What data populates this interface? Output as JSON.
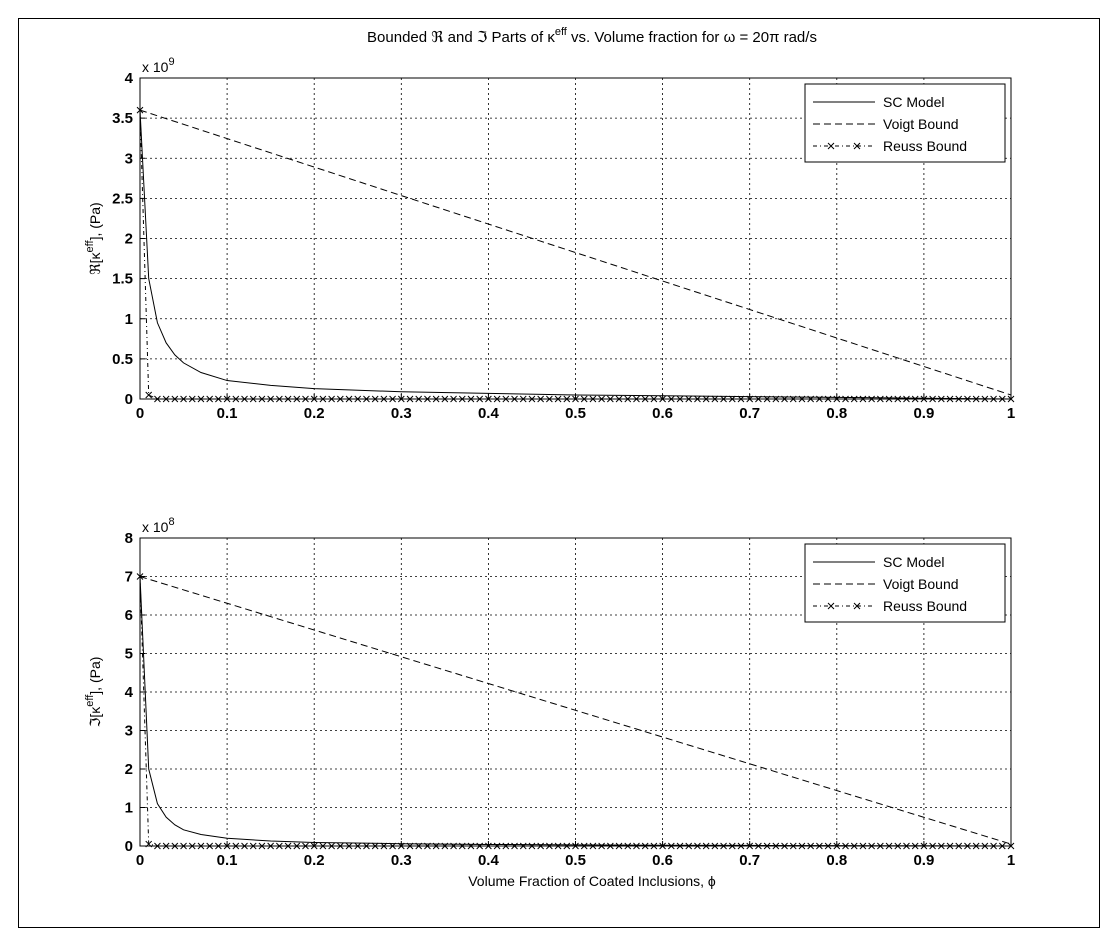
{
  "figure": {
    "title": "Bounded ℜ and ℑ Parts of κ^eff vs. Volume fraction for ω = 20π rad/s",
    "xlabel": "Volume Fraction of Coated Inclusions, ϕ"
  },
  "chart_data": [
    {
      "type": "line",
      "title": "Bounded ℜ and ℑ Parts of κ^eff vs. Volume fraction for ω = 20π rad/s",
      "ylabel": "ℜ[κ^eff], (Pa)",
      "xlabel": "",
      "exponent_label": "x 10^9",
      "xlim": [
        0,
        1
      ],
      "ylim": [
        0,
        4
      ],
      "xticks": [
        "0",
        "0.1",
        "0.2",
        "0.3",
        "0.4",
        "0.5",
        "0.6",
        "0.7",
        "0.8",
        "0.9",
        "1"
      ],
      "yticks": [
        "0",
        "0.5",
        "1",
        "1.5",
        "2",
        "2.5",
        "3",
        "3.5",
        "4"
      ],
      "grid": true,
      "legend_position": "top-right",
      "series": [
        {
          "name": "SC Model",
          "style": "solid",
          "x": [
            0,
            0.01,
            0.02,
            0.03,
            0.04,
            0.05,
            0.07,
            0.1,
            0.15,
            0.2,
            0.3,
            0.4,
            0.5,
            0.6,
            0.7,
            0.8,
            0.9,
            1.0
          ],
          "y": [
            3.6,
            1.5,
            0.95,
            0.7,
            0.55,
            0.45,
            0.33,
            0.23,
            0.17,
            0.13,
            0.09,
            0.07,
            0.05,
            0.04,
            0.03,
            0.02,
            0.01,
            0.0
          ]
        },
        {
          "name": "Voigt Bound",
          "style": "dashed",
          "x": [
            0,
            1
          ],
          "y": [
            3.6,
            0.05
          ]
        },
        {
          "name": "Reuss Bound",
          "style": "dash-dot-x",
          "x": [
            0,
            0.01,
            0.02,
            1.0
          ],
          "y": [
            3.6,
            0.05,
            0.0,
            0.0
          ]
        }
      ]
    },
    {
      "type": "line",
      "title": "",
      "ylabel": "ℑ[κ^eff], (Pa)",
      "xlabel": "Volume Fraction of Coated Inclusions, ϕ",
      "exponent_label": "x 10^8",
      "xlim": [
        0,
        1
      ],
      "ylim": [
        0,
        8
      ],
      "xticks": [
        "0",
        "0.1",
        "0.2",
        "0.3",
        "0.4",
        "0.5",
        "0.6",
        "0.7",
        "0.8",
        "0.9",
        "1"
      ],
      "yticks": [
        "0",
        "1",
        "2",
        "3",
        "4",
        "5",
        "6",
        "7",
        "8"
      ],
      "grid": true,
      "legend_position": "top-right",
      "series": [
        {
          "name": "SC Model",
          "style": "solid",
          "x": [
            0,
            0.01,
            0.02,
            0.03,
            0.04,
            0.05,
            0.07,
            0.1,
            0.15,
            0.2,
            0.3,
            0.4,
            0.5,
            0.6,
            0.7,
            0.8,
            0.9,
            1.0
          ],
          "y": [
            7.0,
            2.0,
            1.1,
            0.75,
            0.55,
            0.42,
            0.3,
            0.2,
            0.13,
            0.09,
            0.06,
            0.04,
            0.03,
            0.02,
            0.015,
            0.01,
            0.005,
            0.0
          ]
        },
        {
          "name": "Voigt Bound",
          "style": "dashed",
          "x": [
            0,
            1
          ],
          "y": [
            7.0,
            0.05
          ]
        },
        {
          "name": "Reuss Bound",
          "style": "dash-dot-x",
          "x": [
            0,
            0.01,
            0.02,
            1.0
          ],
          "y": [
            7.0,
            0.05,
            0.0,
            0.0
          ]
        }
      ]
    }
  ]
}
